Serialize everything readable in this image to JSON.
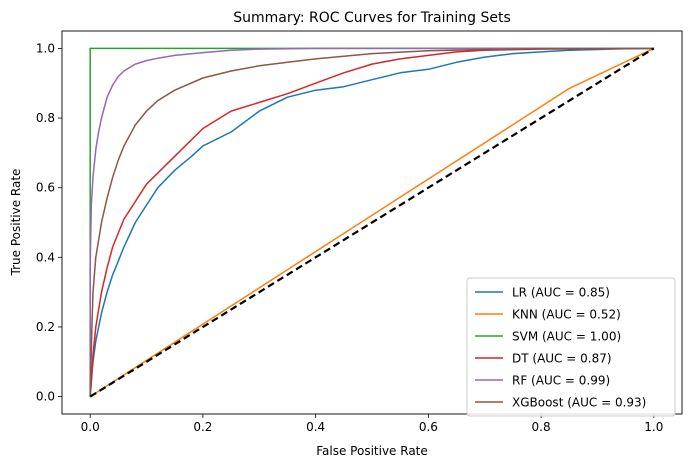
{
  "chart_data": {
    "type": "line",
    "title": "Summary: ROC Curves for Training Sets",
    "xlabel": "False Positive Rate",
    "ylabel": "True Positive Rate",
    "xlim": [
      -0.05,
      1.05
    ],
    "ylim": [
      -0.05,
      1.05
    ],
    "xticks": [
      "0.0",
      "0.2",
      "0.4",
      "0.6",
      "0.8",
      "1.0"
    ],
    "yticks": [
      "0.0",
      "0.2",
      "0.4",
      "0.6",
      "0.8",
      "1.0"
    ],
    "grid": false,
    "legend_position": "lower right",
    "series": [
      {
        "name": "LR (AUC = 0.85)",
        "color": "#1f77b4",
        "x": [
          0,
          0.005,
          0.01,
          0.02,
          0.03,
          0.04,
          0.05,
          0.06,
          0.08,
          0.1,
          0.12,
          0.15,
          0.18,
          0.2,
          0.25,
          0.3,
          0.35,
          0.4,
          0.45,
          0.5,
          0.55,
          0.6,
          0.65,
          0.7,
          0.75,
          0.8,
          0.85,
          0.9,
          0.95,
          1.0
        ],
        "y": [
          0,
          0.1,
          0.16,
          0.24,
          0.3,
          0.35,
          0.39,
          0.43,
          0.5,
          0.55,
          0.6,
          0.65,
          0.69,
          0.72,
          0.76,
          0.82,
          0.86,
          0.88,
          0.89,
          0.91,
          0.93,
          0.94,
          0.96,
          0.975,
          0.985,
          0.99,
          0.995,
          0.997,
          0.999,
          1.0
        ]
      },
      {
        "name": "KNN (AUC = 0.52)",
        "color": "#ff7f0e",
        "x": [
          0,
          0.85,
          1.0
        ],
        "y": [
          0,
          0.885,
          1.0
        ]
      },
      {
        "name": "SVM (AUC = 1.00)",
        "color": "#2ca02c",
        "x": [
          0,
          0,
          1.0
        ],
        "y": [
          0,
          1.0,
          1.0
        ]
      },
      {
        "name": "DT (AUC = 0.87)",
        "color": "#d62728",
        "x": [
          0,
          0.005,
          0.01,
          0.02,
          0.03,
          0.04,
          0.06,
          0.08,
          0.1,
          0.15,
          0.2,
          0.25,
          0.3,
          0.35,
          0.4,
          0.45,
          0.5,
          0.55,
          0.6,
          0.65,
          0.7,
          0.8,
          0.9,
          1.0
        ],
        "y": [
          0,
          0.12,
          0.2,
          0.3,
          0.37,
          0.43,
          0.51,
          0.56,
          0.61,
          0.69,
          0.77,
          0.82,
          0.845,
          0.87,
          0.9,
          0.93,
          0.955,
          0.97,
          0.98,
          0.99,
          0.995,
          0.998,
          0.999,
          1.0
        ]
      },
      {
        "name": "RF (AUC = 0.99)",
        "color": "#9467bd",
        "x": [
          0,
          0,
          0.002,
          0.005,
          0.01,
          0.015,
          0.02,
          0.03,
          0.04,
          0.05,
          0.06,
          0.08,
          0.1,
          0.12,
          0.15,
          0.2,
          0.25,
          0.3,
          0.4,
          0.5,
          1.0
        ],
        "y": [
          0,
          0.38,
          0.55,
          0.63,
          0.71,
          0.76,
          0.8,
          0.86,
          0.895,
          0.92,
          0.935,
          0.955,
          0.965,
          0.972,
          0.98,
          0.988,
          0.995,
          0.998,
          1.0,
          1.0,
          1.0
        ]
      },
      {
        "name": "XGBoost (AUC = 0.93)",
        "color": "#8c564b",
        "x": [
          0,
          0.003,
          0.005,
          0.01,
          0.02,
          0.03,
          0.04,
          0.05,
          0.06,
          0.08,
          0.1,
          0.12,
          0.15,
          0.2,
          0.25,
          0.3,
          0.35,
          0.4,
          0.5,
          0.6,
          0.7,
          0.8,
          1.0
        ],
        "y": [
          0,
          0.2,
          0.3,
          0.4,
          0.5,
          0.57,
          0.63,
          0.68,
          0.72,
          0.78,
          0.82,
          0.85,
          0.88,
          0.915,
          0.935,
          0.95,
          0.96,
          0.97,
          0.985,
          0.993,
          0.997,
          0.999,
          1.0
        ]
      }
    ],
    "reference_line": {
      "x": [
        0,
        1
      ],
      "y": [
        0,
        1
      ],
      "color": "#000000",
      "style": "dashed"
    }
  }
}
